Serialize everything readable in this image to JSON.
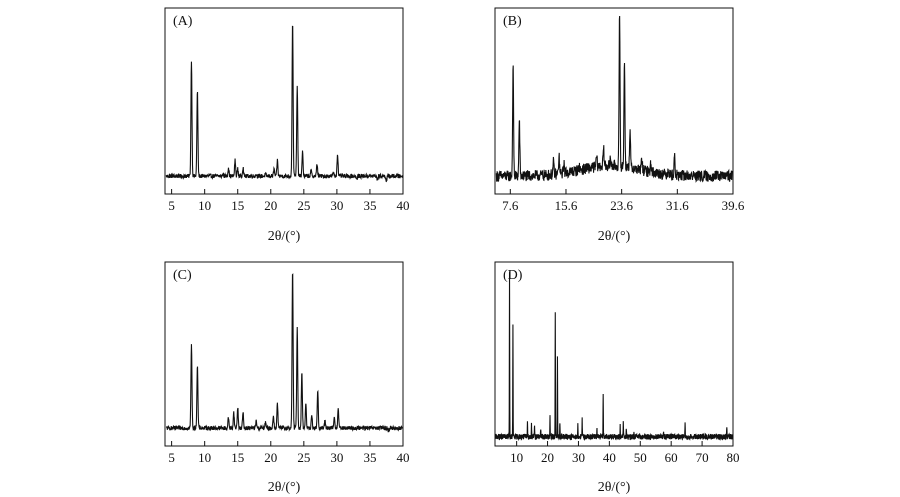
{
  "chart_data": [
    {
      "type": "line",
      "panel_label": "(A)",
      "xlabel": "2θ/(°)",
      "ylabel": "",
      "xlim": [
        4,
        40
      ],
      "ylim": [
        0,
        100
      ],
      "xticks": [
        5,
        10,
        15,
        20,
        25,
        30,
        35,
        40
      ],
      "grid": false,
      "baseline": 8,
      "peaks": [
        {
          "x": 8.0,
          "y": 75
        },
        {
          "x": 8.9,
          "y": 57
        },
        {
          "x": 12.8,
          "y": 9
        },
        {
          "x": 13.6,
          "y": 13
        },
        {
          "x": 14.6,
          "y": 17
        },
        {
          "x": 15.0,
          "y": 12
        },
        {
          "x": 15.8,
          "y": 13
        },
        {
          "x": 17.8,
          "y": 9
        },
        {
          "x": 19.2,
          "y": 9
        },
        {
          "x": 20.5,
          "y": 12
        },
        {
          "x": 21.0,
          "y": 17
        },
        {
          "x": 23.3,
          "y": 98
        },
        {
          "x": 24.0,
          "y": 60
        },
        {
          "x": 24.8,
          "y": 22
        },
        {
          "x": 26.1,
          "y": 11
        },
        {
          "x": 27.0,
          "y": 15
        },
        {
          "x": 28.0,
          "y": 8
        },
        {
          "x": 29.5,
          "y": 10
        },
        {
          "x": 30.1,
          "y": 21
        },
        {
          "x": 33.0,
          "y": 6
        },
        {
          "x": 36.1,
          "y": 6
        },
        {
          "x": 37.5,
          "y": 5
        }
      ]
    },
    {
      "type": "line",
      "panel_label": "(B)",
      "xlabel": "2θ/(°)",
      "ylabel": "",
      "xlim": [
        5.4,
        39.6
      ],
      "ylim": [
        0,
        100
      ],
      "xticks": [
        7.6,
        15.6,
        23.6,
        31.6,
        39.6
      ],
      "grid": false,
      "baseline": 8,
      "peaks": [
        {
          "x": 8.0,
          "y": 70
        },
        {
          "x": 8.9,
          "y": 40
        },
        {
          "x": 13.8,
          "y": 15
        },
        {
          "x": 14.6,
          "y": 18
        },
        {
          "x": 15.3,
          "y": 14
        },
        {
          "x": 17.5,
          "y": 10
        },
        {
          "x": 20.0,
          "y": 14
        },
        {
          "x": 21.0,
          "y": 18
        },
        {
          "x": 22.0,
          "y": 12
        },
        {
          "x": 23.3,
          "y": 95
        },
        {
          "x": 24.0,
          "y": 70
        },
        {
          "x": 24.8,
          "y": 30
        },
        {
          "x": 26.5,
          "y": 15
        },
        {
          "x": 27.8,
          "y": 13
        },
        {
          "x": 30.3,
          "y": 12
        },
        {
          "x": 31.2,
          "y": 19
        },
        {
          "x": 33.5,
          "y": 8
        },
        {
          "x": 36.0,
          "y": 7
        }
      ]
    },
    {
      "type": "line",
      "panel_label": "(C)",
      "xlabel": "2θ/(°)",
      "ylabel": "",
      "xlim": [
        4,
        40
      ],
      "ylim": [
        0,
        100
      ],
      "xticks": [
        5,
        10,
        15,
        20,
        25,
        30,
        35,
        40
      ],
      "grid": false,
      "baseline": 8,
      "peaks": [
        {
          "x": 8.0,
          "y": 56
        },
        {
          "x": 8.9,
          "y": 44
        },
        {
          "x": 13.6,
          "y": 14
        },
        {
          "x": 14.4,
          "y": 17
        },
        {
          "x": 15.0,
          "y": 20
        },
        {
          "x": 15.8,
          "y": 17
        },
        {
          "x": 17.8,
          "y": 12
        },
        {
          "x": 19.2,
          "y": 11
        },
        {
          "x": 20.4,
          "y": 15
        },
        {
          "x": 21.0,
          "y": 22
        },
        {
          "x": 23.3,
          "y": 100
        },
        {
          "x": 24.0,
          "y": 65
        },
        {
          "x": 24.7,
          "y": 40
        },
        {
          "x": 25.3,
          "y": 22
        },
        {
          "x": 26.2,
          "y": 16
        },
        {
          "x": 27.1,
          "y": 30
        },
        {
          "x": 28.2,
          "y": 12
        },
        {
          "x": 29.6,
          "y": 14
        },
        {
          "x": 30.2,
          "y": 20
        },
        {
          "x": 34.8,
          "y": 8
        },
        {
          "x": 36.2,
          "y": 8
        },
        {
          "x": 37.8,
          "y": 6
        }
      ]
    },
    {
      "type": "line",
      "panel_label": "(D)",
      "xlabel": "2θ/(°)",
      "ylabel": "",
      "xlim": [
        3,
        80
      ],
      "ylim": [
        0,
        100
      ],
      "xticks": [
        10,
        20,
        30,
        40,
        50,
        60,
        70,
        80
      ],
      "grid": false,
      "baseline": 3,
      "peaks": [
        {
          "x": 7.7,
          "y": 95
        },
        {
          "x": 8.8,
          "y": 66
        },
        {
          "x": 13.5,
          "y": 13
        },
        {
          "x": 14.8,
          "y": 11
        },
        {
          "x": 15.8,
          "y": 9
        },
        {
          "x": 17.8,
          "y": 8
        },
        {
          "x": 20.8,
          "y": 14
        },
        {
          "x": 22.5,
          "y": 74
        },
        {
          "x": 23.2,
          "y": 48
        },
        {
          "x": 24.0,
          "y": 12
        },
        {
          "x": 29.8,
          "y": 10
        },
        {
          "x": 31.2,
          "y": 13
        },
        {
          "x": 36.0,
          "y": 7
        },
        {
          "x": 38.0,
          "y": 27
        },
        {
          "x": 43.5,
          "y": 9
        },
        {
          "x": 44.5,
          "y": 11
        },
        {
          "x": 45.5,
          "y": 8
        },
        {
          "x": 48.0,
          "y": 5
        },
        {
          "x": 57.5,
          "y": 5
        },
        {
          "x": 64.5,
          "y": 11
        },
        {
          "x": 78.0,
          "y": 9
        }
      ]
    }
  ]
}
